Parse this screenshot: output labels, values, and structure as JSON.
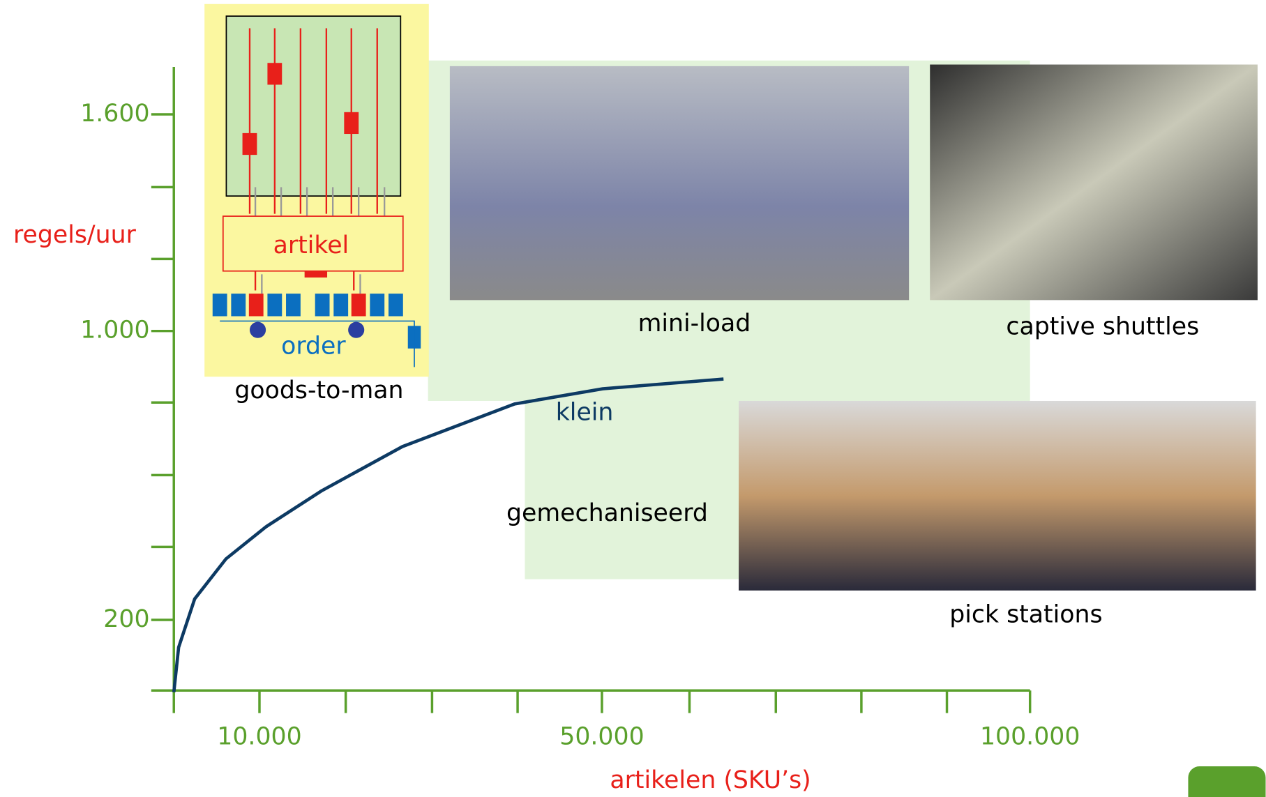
{
  "chart_data": {
    "type": "line",
    "y_label": "regels/uur",
    "x_label": "artikelen (SKU’s)",
    "x": [
      0,
      560,
      2430,
      6090,
      10770,
      17300,
      26700,
      39800,
      50100,
      64200
    ],
    "series": [
      {
        "color": "#0d3a63",
        "values": [
          0,
          124,
          258,
          369,
          458,
          558,
          680,
          798,
          840,
          867
        ]
      }
    ],
    "xlim": [
      0,
      100000
    ],
    "ylim": [
      0,
      1720
    ],
    "xticks": [
      {
        "value": 10000,
        "label": "10.000"
      },
      {
        "value": 50000,
        "label": "50.000"
      },
      {
        "value": 100000,
        "label": "100.000"
      }
    ],
    "yticks": [
      200,
      {
        "value": 1000,
        "label": "1.000"
      },
      {
        "value": 1600,
        "label": "1.600"
      }
    ],
    "axis_color": "#5aa02c",
    "annotations": [
      "klein",
      "gemechaniseerd"
    ]
  },
  "images": [
    {
      "caption": "goods-to-man",
      "labels": [
        "artikel",
        "order"
      ]
    },
    {
      "caption": "mini-load"
    },
    {
      "caption": "captive shuttles"
    },
    {
      "caption": "pick stations"
    }
  ]
}
